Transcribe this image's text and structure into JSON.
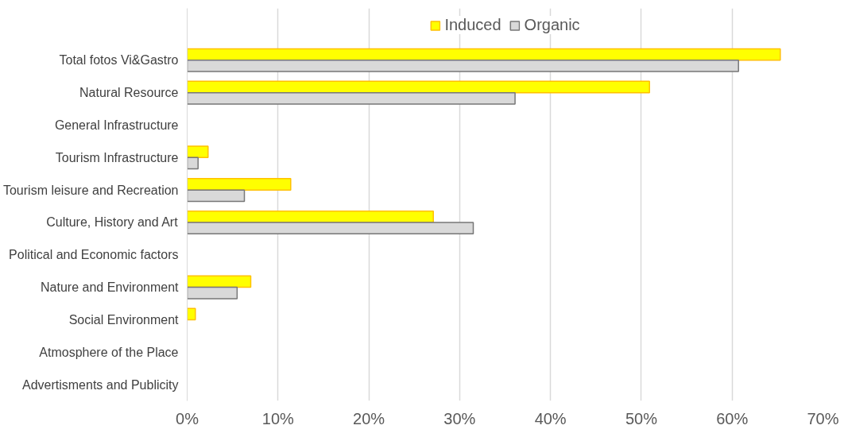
{
  "chart_data": {
    "type": "bar",
    "orientation": "horizontal",
    "categories": [
      "Total fotos Vi&Gastro",
      "Natural Resource",
      "General Infrastructure",
      "Tourism Infrastructure",
      "Tourism leisure and Recreation",
      "Culture, History and Art",
      "Political and Economic factors",
      "Nature and Environment",
      "Social Environment",
      "Atmosphere of the Place",
      "Advertisments and Publicity"
    ],
    "series": [
      {
        "name": "Induced",
        "color": "#ffff00",
        "values": [
          65.3,
          50.9,
          null,
          2.3,
          11.4,
          27.1,
          null,
          7.0,
          0.9,
          null,
          null
        ]
      },
      {
        "name": "Organic",
        "color": "#d9d9d9",
        "values": [
          60.7,
          36.1,
          null,
          1.2,
          6.3,
          31.5,
          null,
          5.5,
          null,
          null,
          null
        ]
      }
    ],
    "xlim": [
      0,
      70
    ],
    "xticks": [
      {
        "value": 0,
        "label": "0%"
      },
      {
        "value": 10,
        "label": "10%"
      },
      {
        "value": 20,
        "label": "20%"
      },
      {
        "value": 30,
        "label": "30%"
      },
      {
        "value": 40,
        "label": "40%"
      },
      {
        "value": 50,
        "label": "50%"
      },
      {
        "value": 60,
        "label": "60%"
      },
      {
        "value": 70,
        "label": "70%"
      }
    ],
    "grid": "x",
    "legend": "top"
  }
}
